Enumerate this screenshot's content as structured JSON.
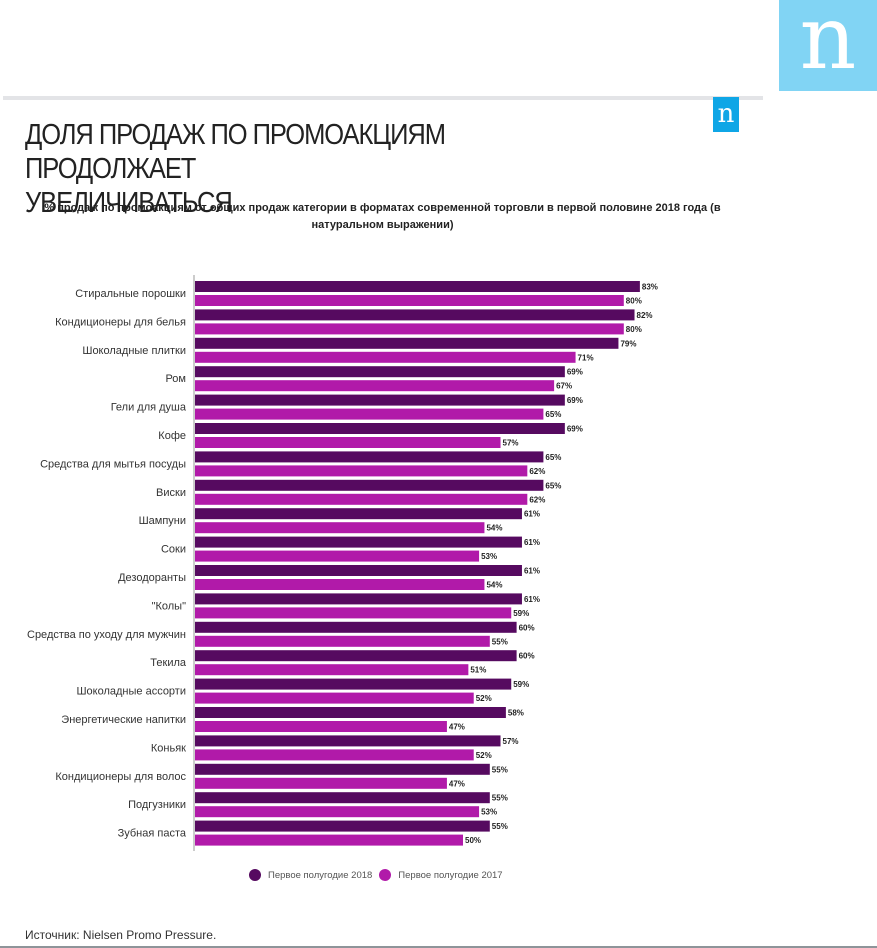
{
  "header": {
    "logo_letter": "n",
    "small_logo_letter": "n",
    "title": "ДОЛЯ ПРОДАЖ ПО ПРОМОАКЦИЯМ ПРОДОЛЖАЕТ\nУВЕЛИЧИВАТЬСЯ",
    "subtitle": "% продаж по промоакциям от общих продаж категории в форматах современной торговли в первой половине 2018 года (в натуральном выражении)"
  },
  "colors": {
    "series_2018": "#560a60",
    "series_2017": "#b11aa9",
    "logo_big": "#81d4f4",
    "logo_small": "#0fa6e6"
  },
  "chart_data": {
    "type": "bar",
    "orientation": "horizontal",
    "title": "% продаж по промоакциям от общих продаж категории в форматах современной торговли в первой половине 2018 года (в натуральном выражении)",
    "xlabel": "",
    "ylabel": "",
    "xlim": [
      0,
      100
    ],
    "grid": false,
    "legend_position": "bottom",
    "value_suffix": "%",
    "categories": [
      "Стиральные порошки",
      "Кондиционеры для белья",
      "Шоколадные плитки",
      "Ром",
      "Гели для душа",
      "Кофе",
      "Средства для мытья посуды",
      "Виски",
      "Шампуни",
      "Соки",
      "Дезодоранты",
      "\"Колы\"",
      "Средства по уходу для мужчин",
      "Текила",
      "Шоколадные ассорти",
      "Энергетические напитки",
      "Коньяк",
      "Кондиционеры для волос",
      "Подгузники",
      "Зубная паста"
    ],
    "series": [
      {
        "name": "Первое полугодие 2018",
        "values": [
          83,
          82,
          79,
          69,
          69,
          69,
          65,
          65,
          61,
          61,
          61,
          61,
          60,
          60,
          59,
          58,
          57,
          55,
          55,
          55
        ]
      },
      {
        "name": "Первое полугодие 2017",
        "values": [
          80,
          80,
          71,
          67,
          65,
          57,
          62,
          62,
          54,
          53,
          54,
          59,
          55,
          51,
          52,
          47,
          52,
          47,
          53,
          50
        ]
      }
    ]
  },
  "legend": {
    "items": [
      "Первое полугодие 2018",
      "Первое полугодие 2017"
    ]
  },
  "footer": {
    "source": "Источник: Nielsen Promo Pressure."
  }
}
